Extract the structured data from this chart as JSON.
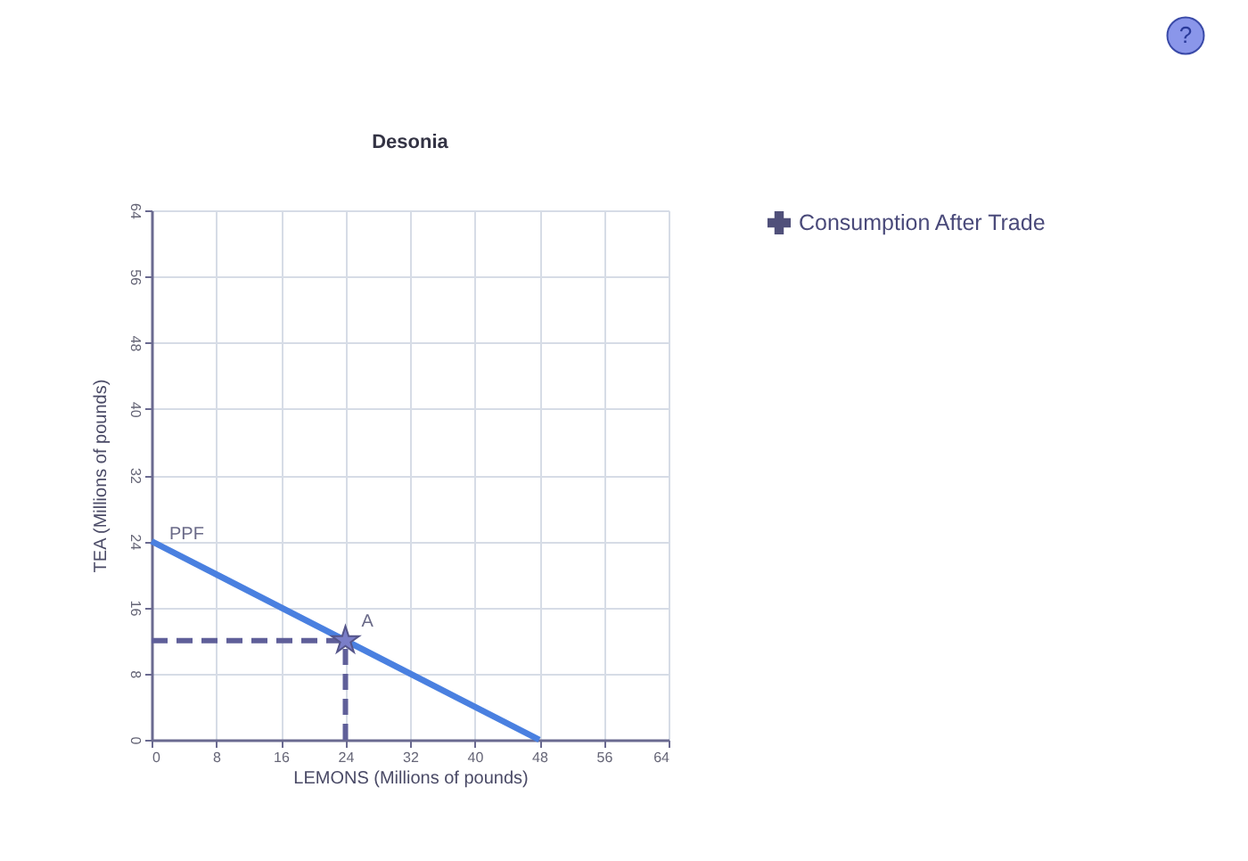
{
  "chart_data": {
    "type": "line",
    "title": "Desonia",
    "xlabel": "LEMONS (Millions of pounds)",
    "ylabel": "TEA (Millions of pounds)",
    "xlim": [
      0,
      64
    ],
    "ylim": [
      0,
      64
    ],
    "xticks": [
      0,
      8,
      16,
      24,
      32,
      40,
      48,
      56,
      64
    ],
    "yticks": [
      0,
      8,
      16,
      24,
      32,
      40,
      48,
      56,
      64
    ],
    "grid": true,
    "legend": "right",
    "annotations": [
      "?"
    ],
    "series": [
      {
        "name": "PPF",
        "color": "#4a80e0",
        "x": [
          0,
          48
        ],
        "values": [
          24,
          0
        ]
      },
      {
        "line_style": "dashed",
        "color": "#5f5f99",
        "x": [
          0,
          24
        ],
        "values": [
          12,
          12
        ]
      },
      {
        "line_style": "dashed",
        "color": "#5f5f99",
        "x": [
          24,
          24
        ],
        "values": [
          0,
          12
        ]
      },
      {
        "name": "A",
        "type": "scatter",
        "marker": "star",
        "color": "#7a7ec8",
        "x": [
          24
        ],
        "values": [
          12
        ]
      },
      {
        "name": "Consumption After Trade",
        "type": "scatter",
        "marker": "cross",
        "color": "#50507a"
      }
    ]
  }
}
